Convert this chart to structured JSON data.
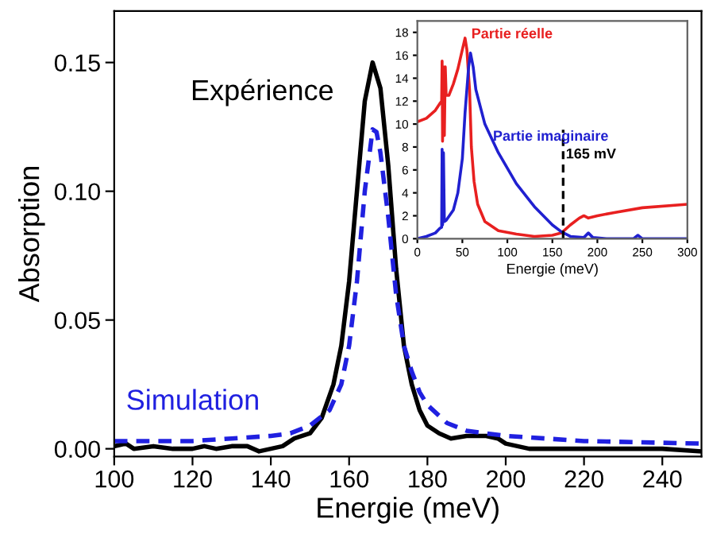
{
  "chart_data": [
    {
      "type": "line",
      "xlabel": "Energie (meV)",
      "ylabel": "Absorption",
      "xlim": [
        100,
        250
      ],
      "ylim": [
        -0.003,
        0.17
      ],
      "xticks": [
        100,
        120,
        140,
        160,
        180,
        200,
        220,
        240
      ],
      "yticks": [
        {
          "value": 0,
          "label": "0.00"
        },
        {
          "value": 0.05,
          "label": "0.05"
        },
        {
          "value": 0.1,
          "label": "0.10"
        },
        {
          "value": 0.15,
          "label": "0.15"
        }
      ],
      "grid": false,
      "legend": false,
      "series": [
        {
          "name": "Expérience",
          "color": "#000000",
          "line_style": "solid",
          "x": [
            100,
            103,
            105,
            110,
            115,
            120,
            123,
            126,
            130,
            134,
            137,
            140,
            143,
            146,
            150,
            153,
            156,
            158,
            160,
            162,
            164,
            166,
            168,
            170,
            172,
            174,
            176,
            178,
            180,
            183,
            186,
            190,
            195,
            198,
            200,
            203,
            206,
            210,
            215,
            220,
            230,
            240,
            250
          ],
          "values": [
            0.001,
            0.002,
            0.0,
            0.001,
            0.0,
            0.0,
            0.001,
            0.0,
            0.001,
            0.001,
            -0.001,
            0.0,
            0.001,
            0.004,
            0.006,
            0.012,
            0.025,
            0.04,
            0.065,
            0.1,
            0.135,
            0.15,
            0.14,
            0.11,
            0.07,
            0.04,
            0.025,
            0.015,
            0.009,
            0.006,
            0.004,
            0.005,
            0.005,
            0.004,
            0.002,
            0.001,
            0.0,
            0.0,
            0.0,
            0.0,
            0.0,
            0.0,
            -0.001
          ]
        },
        {
          "name": "Simulation",
          "color": "#2020e0",
          "line_style": "dashed",
          "x": [
            100,
            120,
            130,
            140,
            145,
            150,
            155,
            158,
            160,
            162,
            164,
            166,
            167,
            168,
            170,
            172,
            174,
            176,
            178,
            180,
            185,
            190,
            200,
            210,
            220,
            250
          ],
          "values": [
            0.003,
            0.003,
            0.004,
            0.005,
            0.006,
            0.009,
            0.015,
            0.025,
            0.04,
            0.065,
            0.1,
            0.124,
            0.123,
            0.115,
            0.09,
            0.06,
            0.04,
            0.03,
            0.022,
            0.017,
            0.01,
            0.007,
            0.005,
            0.004,
            0.003,
            0.002
          ]
        }
      ]
    },
    {
      "type": "line",
      "xlabel": "Energie (meV)",
      "xlim": [
        0,
        300
      ],
      "ylim": [
        0,
        19
      ],
      "xticks": [
        0,
        50,
        100,
        150,
        200,
        250,
        300
      ],
      "yticks": [
        0,
        2,
        4,
        6,
        8,
        10,
        12,
        14,
        16,
        18
      ],
      "grid": false,
      "legend": false,
      "ref_lines": [
        {
          "axis": "x",
          "value": 162,
          "label": "165 mV",
          "color": "#000000",
          "line_style": "dashed"
        }
      ],
      "series": [
        {
          "name": "Partie réelle",
          "color": "#e82020",
          "line_style": "solid",
          "x": [
            0,
            10,
            20,
            25,
            27,
            27.5,
            28,
            29,
            30,
            31,
            32,
            35,
            40,
            45,
            50,
            53,
            55,
            58,
            60,
            63,
            67,
            75,
            90,
            110,
            130,
            150,
            160,
            170,
            180,
            185,
            190,
            200,
            220,
            250,
            300
          ],
          "values": [
            10.2,
            10.5,
            11.2,
            11.8,
            12,
            15.5,
            8.5,
            15,
            9,
            15,
            12.5,
            12.5,
            13.5,
            14.8,
            16.5,
            17.5,
            16.5,
            13,
            8,
            5,
            3,
            1.5,
            0.7,
            0.4,
            0.2,
            0.3,
            0.5,
            1.2,
            1.8,
            2.0,
            1.8,
            2.0,
            2.3,
            2.7,
            3.0
          ]
        },
        {
          "name": "Partie imaginaire",
          "color": "#2020d0",
          "line_style": "solid",
          "x": [
            0,
            10,
            20,
            25,
            27,
            27.5,
            28,
            29,
            30,
            32,
            40,
            45,
            50,
            53,
            57,
            59,
            62,
            65,
            75,
            90,
            110,
            130,
            150,
            160,
            170,
            185,
            190,
            195,
            210,
            240,
            245,
            250,
            300
          ],
          "values": [
            0,
            0.2,
            0.5,
            0.9,
            1.0,
            7.8,
            1.2,
            7.5,
            1.5,
            1.6,
            2.5,
            4,
            7,
            11,
            15,
            16.2,
            15,
            13,
            10,
            7.5,
            4.8,
            2.8,
            1.2,
            0.6,
            0.2,
            0.1,
            0.5,
            0.1,
            0.0,
            0.0,
            0.3,
            0.0,
            0.0
          ]
        }
      ]
    }
  ]
}
